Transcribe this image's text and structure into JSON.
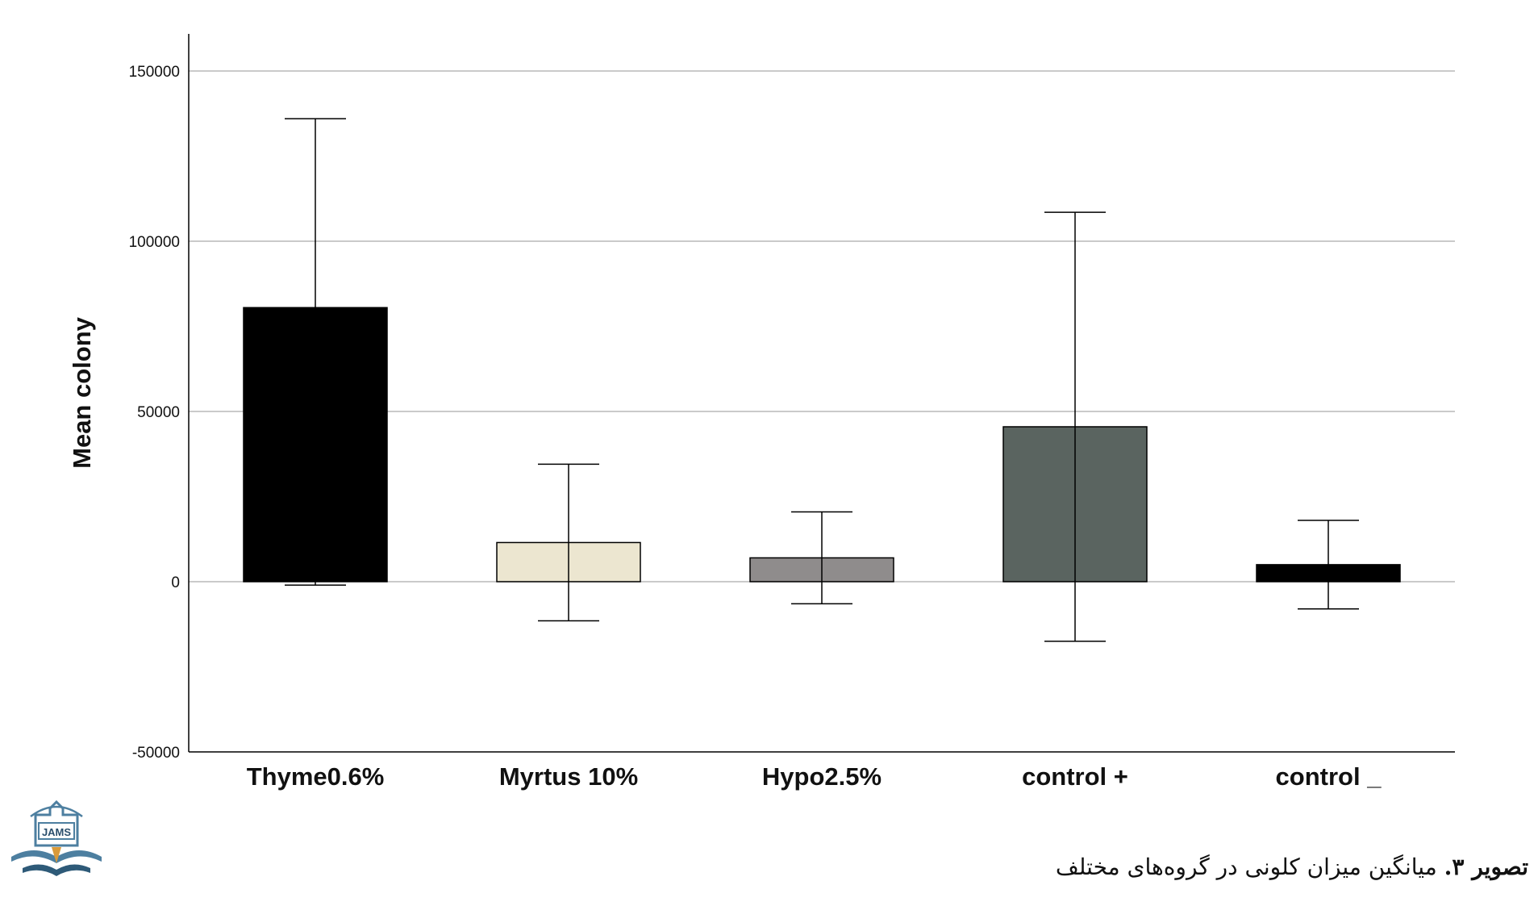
{
  "chart_data": {
    "type": "bar",
    "categories": [
      "Thyme0.6%",
      "Myrtus 10%",
      "Hypo2.5%",
      "control +",
      "control _"
    ],
    "values": [
      80500,
      11500,
      7000,
      45500,
      5000
    ],
    "error_low": [
      -1000,
      -11500,
      -6500,
      -17500,
      -8000
    ],
    "error_high": [
      136000,
      34500,
      20500,
      108500,
      18000
    ],
    "colors": [
      "#000000",
      "#ece6d0",
      "#8f8c8c",
      "#5a6460",
      "#000000"
    ],
    "ylabel": "Mean colony",
    "xlabel": "",
    "ylim": [
      -50000,
      160000
    ],
    "yticks": [
      -50000,
      0,
      50000,
      100000,
      150000
    ],
    "ytick_labels": [
      "-50000",
      "0",
      "50000",
      "100000",
      "150000"
    ],
    "grid": true
  },
  "caption": {
    "label": "تصویر ۳.",
    "text": "میانگین میزان کلونی در گروه‌های مختلف"
  },
  "logo": {
    "text": "JAMS",
    "icon": "jams-journal-logo-icon"
  }
}
